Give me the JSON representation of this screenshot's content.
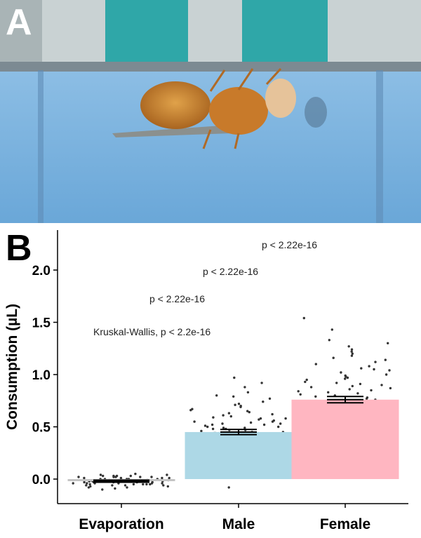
{
  "panel_a": {
    "label": "A",
    "photo": {
      "subject": "fly-on-blue-feeder",
      "colors": {
        "rim": "#b9c4c4",
        "teal": "#2fa7a8",
        "liquid": "#7fb8e2",
        "fly_body": "#c8852f",
        "wing": "#8d8a80"
      }
    }
  },
  "panel_b": {
    "label": "B",
    "stat_labels": {
      "kruskal": "Kruskal-Wallis, p < 2.2e-16",
      "p_evap_male": "p < 2.22e-16",
      "p_evap_female": "p < 2.22e-16",
      "p_male_female": "p < 2.22e-16"
    }
  },
  "chart_data": {
    "type": "bar",
    "title": "",
    "xlabel": "",
    "ylabel": "Consumption (µL)",
    "ylim": [
      -0.25,
      2.35
    ],
    "yticks": [
      "0.0",
      "0.5",
      "1.0",
      "1.5",
      "2.0"
    ],
    "categories": [
      "Evaporation",
      "Male",
      "Female"
    ],
    "values": [
      -0.02,
      0.45,
      0.76
    ],
    "sem": [
      0.01,
      0.025,
      0.03
    ],
    "colors": [
      "#c4c4c4",
      "#add8e6",
      "#ffb6c1"
    ],
    "grid": false,
    "legend": "none",
    "points": {
      "Evaporation": [
        -0.04,
        0.02,
        -0.08,
        -0.01,
        0.03,
        -0.05,
        -0.02,
        0.0,
        -0.06,
        0.04,
        -0.03,
        -0.07,
        0.01,
        -0.04,
        0.02,
        -0.02,
        -0.09,
        0.05,
        -0.01,
        -0.05,
        0.0,
        -0.03,
        0.03,
        -0.06,
        -0.02,
        0.01,
        -0.04,
        -0.08,
        0.02,
        -0.01,
        -0.05,
        0.04,
        -0.03,
        -0.02,
        0.0,
        -0.07,
        0.01,
        -0.04,
        -0.01,
        0.03,
        -0.06,
        -0.02,
        -0.03,
        0.02,
        -0.05,
        0.0,
        -0.01,
        -0.04,
        0.01,
        -0.1,
        -0.03,
        0.02,
        -0.02,
        -0.06,
        0.0,
        -0.01,
        -0.04,
        0.03,
        -0.05,
        -0.02
      ],
      "Male": [
        0.92,
        0.88,
        0.97,
        0.8,
        0.77,
        0.74,
        0.72,
        0.7,
        0.69,
        0.67,
        0.65,
        0.64,
        0.63,
        0.62,
        0.61,
        0.6,
        0.59,
        0.58,
        0.57,
        0.56,
        0.55,
        0.55,
        0.54,
        0.53,
        0.52,
        0.52,
        0.51,
        0.5,
        0.5,
        0.49,
        0.49,
        0.48,
        0.47,
        0.47,
        0.46,
        0.45,
        0.45,
        0.44,
        0.44,
        0.43,
        0.43,
        0.42,
        0.41,
        0.41,
        0.4,
        0.4,
        0.39,
        0.38,
        0.38,
        0.37,
        0.36,
        0.36,
        0.35,
        0.34,
        0.33,
        0.32,
        0.31,
        0.3,
        0.29,
        0.28,
        0.26,
        0.25,
        0.23,
        0.21,
        0.19,
        0.16,
        0.12,
        0.06,
        -0.08,
        0.83,
        0.79,
        0.71,
        0.66,
        0.58,
        0.53,
        0.48,
        0.42,
        0.37,
        0.33,
        0.27
      ],
      "Female": [
        1.54,
        1.43,
        1.33,
        1.3,
        1.27,
        1.24,
        1.22,
        1.2,
        1.18,
        1.16,
        1.14,
        1.12,
        1.1,
        1.08,
        1.06,
        1.04,
        1.02,
        1.0,
        0.99,
        0.97,
        0.96,
        0.95,
        0.93,
        0.92,
        0.9,
        0.89,
        0.88,
        0.86,
        0.85,
        0.84,
        0.82,
        0.81,
        0.8,
        0.79,
        0.78,
        0.77,
        0.76,
        0.75,
        0.74,
        0.73,
        0.72,
        0.71,
        0.7,
        0.69,
        0.68,
        0.67,
        0.66,
        0.65,
        0.64,
        0.63,
        0.62,
        0.61,
        0.6,
        0.59,
        0.58,
        0.57,
        0.56,
        0.55,
        0.54,
        0.53,
        0.52,
        0.51,
        0.5,
        0.49,
        0.48,
        0.47,
        0.46,
        0.45,
        0.44,
        0.43,
        0.42,
        0.41,
        0.4,
        0.38,
        0.36,
        0.34,
        0.32,
        0.3,
        0.28,
        0.26,
        0.24,
        0.22,
        0.2,
        0.16,
        1.05,
        0.98,
        0.91,
        0.87,
        0.83,
        0.74,
        0.69,
        0.62,
        0.55,
        0.47,
        0.39
      ]
    }
  }
}
